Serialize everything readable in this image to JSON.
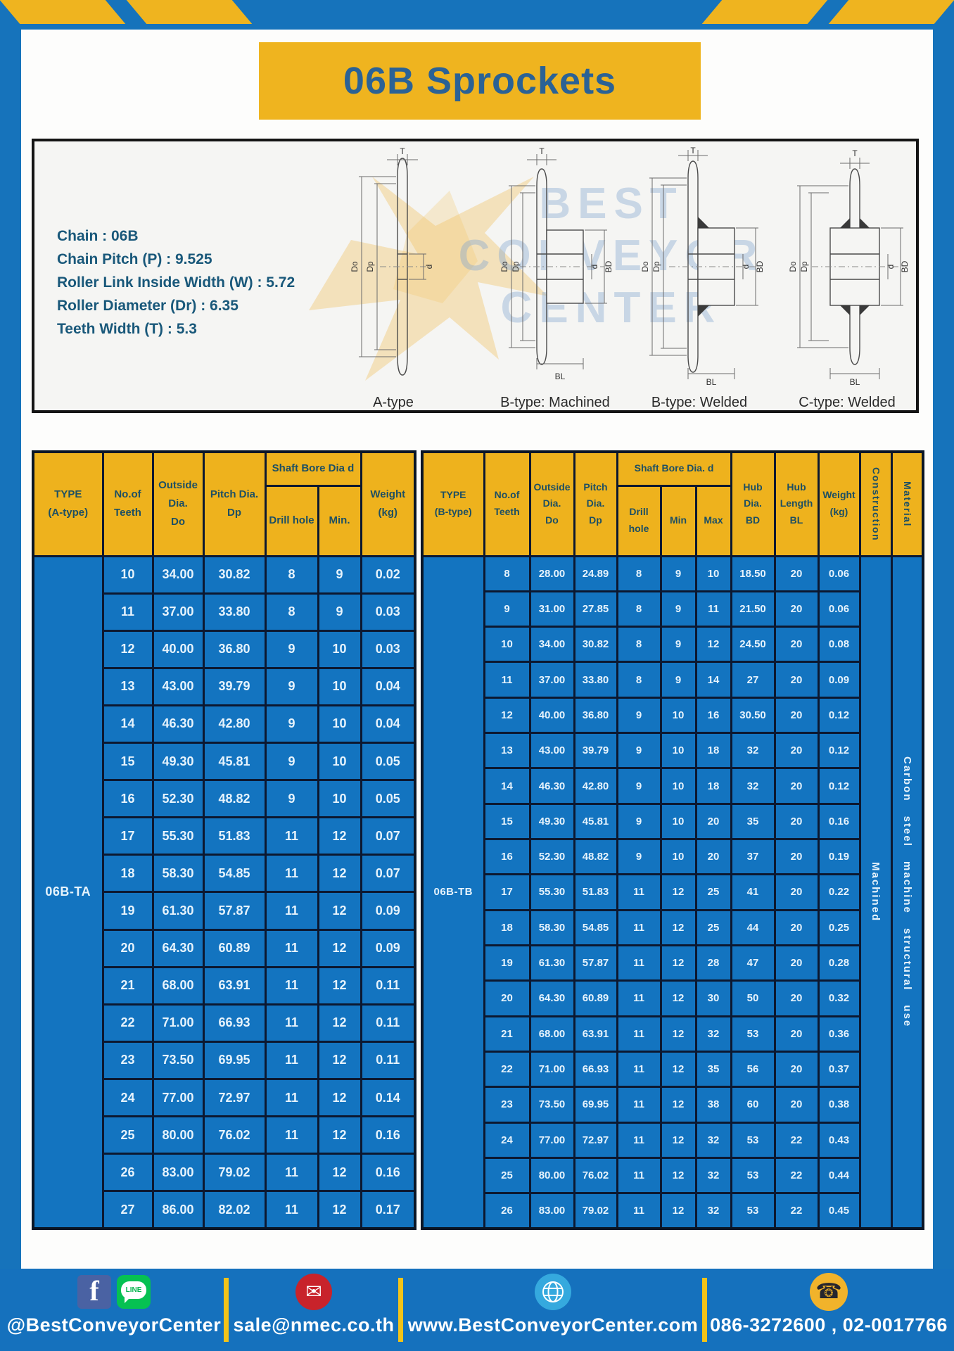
{
  "header": {
    "title": "06B Sprockets"
  },
  "specs": {
    "chain": "Chain : 06B",
    "pitch": "Chain Pitch (P) : 9.525",
    "roller_width": "Roller Link Inside Width (W) : 5.72",
    "roller_dia": "Roller Diameter (Dr) : 6.35",
    "teeth_width": "Teeth Width (T) : 5.3"
  },
  "watermark": {
    "line1": "BEST",
    "line2": "CONVEYOR",
    "line3": "CENTER"
  },
  "drawings": {
    "dims": {
      "t": "T",
      "dia_o": "Do",
      "dia_p": "Dp",
      "d": "d",
      "bd": "BD",
      "bl": "BL"
    },
    "types": [
      "A-type",
      "B-type: Machined",
      "B-type: Welded",
      "C-type: Welded"
    ]
  },
  "tableA": {
    "headers": {
      "type": "TYPE\n(A-type)",
      "teeth": "No.of\nTeeth",
      "outside": "Outside\nDia.\nDo",
      "pitch": "Pitch Dia.\nDp",
      "shaft_bore": "Shaft Bore Dia d",
      "drill": "Drill hole",
      "min": "Min.",
      "weight": "Weight\n(kg)"
    },
    "type": "06B-TA",
    "rows": [
      [
        "10",
        "34.00",
        "30.82",
        "8",
        "9",
        "0.02"
      ],
      [
        "11",
        "37.00",
        "33.80",
        "8",
        "9",
        "0.03"
      ],
      [
        "12",
        "40.00",
        "36.80",
        "9",
        "10",
        "0.03"
      ],
      [
        "13",
        "43.00",
        "39.79",
        "9",
        "10",
        "0.04"
      ],
      [
        "14",
        "46.30",
        "42.80",
        "9",
        "10",
        "0.04"
      ],
      [
        "15",
        "49.30",
        "45.81",
        "9",
        "10",
        "0.05"
      ],
      [
        "16",
        "52.30",
        "48.82",
        "9",
        "10",
        "0.05"
      ],
      [
        "17",
        "55.30",
        "51.83",
        "11",
        "12",
        "0.07"
      ],
      [
        "18",
        "58.30",
        "54.85",
        "11",
        "12",
        "0.07"
      ],
      [
        "19",
        "61.30",
        "57.87",
        "11",
        "12",
        "0.09"
      ],
      [
        "20",
        "64.30",
        "60.89",
        "11",
        "12",
        "0.09"
      ],
      [
        "21",
        "68.00",
        "63.91",
        "11",
        "12",
        "0.11"
      ],
      [
        "22",
        "71.00",
        "66.93",
        "11",
        "12",
        "0.11"
      ],
      [
        "23",
        "73.50",
        "69.95",
        "11",
        "12",
        "0.11"
      ],
      [
        "24",
        "77.00",
        "72.97",
        "11",
        "12",
        "0.14"
      ],
      [
        "25",
        "80.00",
        "76.02",
        "11",
        "12",
        "0.16"
      ],
      [
        "26",
        "83.00",
        "79.02",
        "11",
        "12",
        "0.16"
      ],
      [
        "27",
        "86.00",
        "82.02",
        "11",
        "12",
        "0.17"
      ]
    ]
  },
  "tableB": {
    "headers": {
      "type": "TYPE\n(B-type)",
      "teeth": "No.of\nTeeth",
      "outside": "Outside\nDia.\nDo",
      "pitch": "Pitch\nDia.\nDp",
      "shaft_bore": "Shaft Bore Dia. d",
      "drill": "Drill hole",
      "min": "Min",
      "max": "Max",
      "hub_dia": "Hub\nDia.\nBD",
      "hub_len": "Hub\nLength\nBL",
      "weight": "Weight\n(kg)",
      "construction": "Construction",
      "material": "Material"
    },
    "type": "06B-TB",
    "construction": "Machined",
    "material": "Carbon steel machine structural use",
    "rows": [
      [
        "8",
        "28.00",
        "24.89",
        "8",
        "9",
        "10",
        "18.50",
        "20",
        "0.06"
      ],
      [
        "9",
        "31.00",
        "27.85",
        "8",
        "9",
        "11",
        "21.50",
        "20",
        "0.06"
      ],
      [
        "10",
        "34.00",
        "30.82",
        "8",
        "9",
        "12",
        "24.50",
        "20",
        "0.08"
      ],
      [
        "11",
        "37.00",
        "33.80",
        "8",
        "9",
        "14",
        "27",
        "20",
        "0.09"
      ],
      [
        "12",
        "40.00",
        "36.80",
        "9",
        "10",
        "16",
        "30.50",
        "20",
        "0.12"
      ],
      [
        "13",
        "43.00",
        "39.79",
        "9",
        "10",
        "18",
        "32",
        "20",
        "0.12"
      ],
      [
        "14",
        "46.30",
        "42.80",
        "9",
        "10",
        "18",
        "32",
        "20",
        "0.12"
      ],
      [
        "15",
        "49.30",
        "45.81",
        "9",
        "10",
        "20",
        "35",
        "20",
        "0.16"
      ],
      [
        "16",
        "52.30",
        "48.82",
        "9",
        "10",
        "20",
        "37",
        "20",
        "0.19"
      ],
      [
        "17",
        "55.30",
        "51.83",
        "11",
        "12",
        "25",
        "41",
        "20",
        "0.22"
      ],
      [
        "18",
        "58.30",
        "54.85",
        "11",
        "12",
        "25",
        "44",
        "20",
        "0.25"
      ],
      [
        "19",
        "61.30",
        "57.87",
        "11",
        "12",
        "28",
        "47",
        "20",
        "0.28"
      ],
      [
        "20",
        "64.30",
        "60.89",
        "11",
        "12",
        "30",
        "50",
        "20",
        "0.32"
      ],
      [
        "21",
        "68.00",
        "63.91",
        "11",
        "12",
        "32",
        "53",
        "20",
        "0.36"
      ],
      [
        "22",
        "71.00",
        "66.93",
        "11",
        "12",
        "35",
        "56",
        "20",
        "0.37"
      ],
      [
        "23",
        "73.50",
        "69.95",
        "11",
        "12",
        "38",
        "60",
        "20",
        "0.38"
      ],
      [
        "24",
        "77.00",
        "72.97",
        "11",
        "12",
        "32",
        "53",
        "22",
        "0.43"
      ],
      [
        "25",
        "80.00",
        "76.02",
        "11",
        "12",
        "32",
        "53",
        "22",
        "0.44"
      ],
      [
        "26",
        "83.00",
        "79.02",
        "11",
        "12",
        "32",
        "53",
        "22",
        "0.45"
      ]
    ]
  },
  "footer": {
    "fb_letter": "f",
    "line_text": "LINE",
    "social_label": "@BestConveyorCenter",
    "email": "sale@nmec.co.th",
    "website": "www.BestConveyorCenter.com",
    "phones": "086-3272600 , 02-0017766"
  },
  "colors": {
    "frame_blue": "#1673bb",
    "cell_blue": "#1374c0",
    "accent_yellow": "#efb41f",
    "header_text": "#1d4f63",
    "title_text": "#2b6295",
    "border_dark": "#0c1830"
  }
}
